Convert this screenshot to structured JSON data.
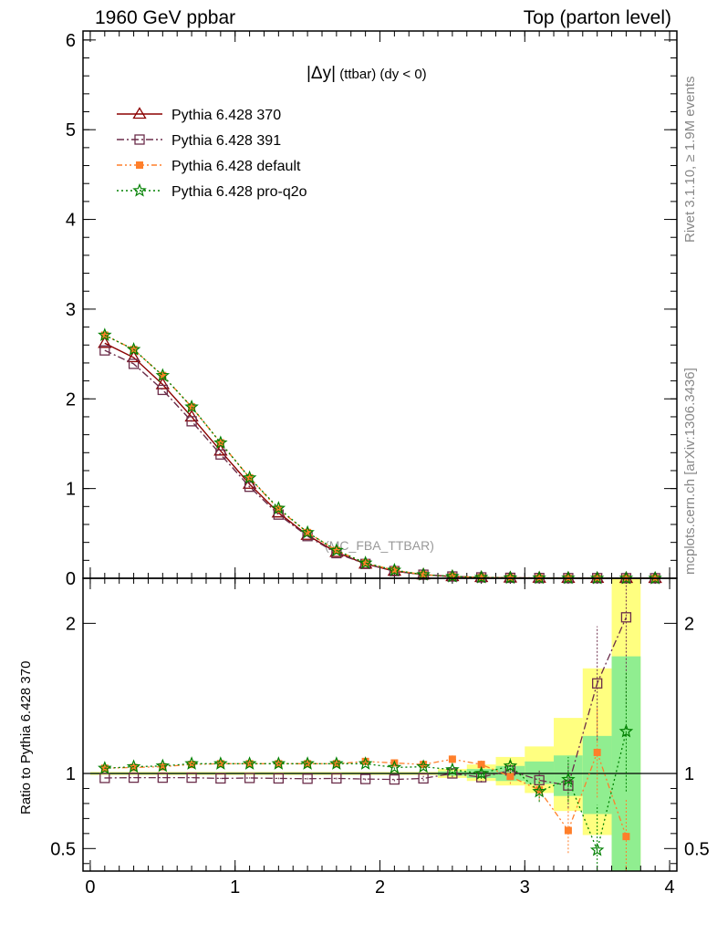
{
  "header": {
    "left": "1960 GeV ppbar",
    "right": "Top (parton level)"
  },
  "side": {
    "rivet": "Rivet 3.1.10, ≥ 1.9M events",
    "mcplots": "mcplots.cern.ch [arXiv:1306.3436]"
  },
  "plot": {
    "title_main": "|Δy|",
    "title_sub": " (ttbar) (dy < 0)",
    "watermark": "(MC_FBA_TTBAR)",
    "ratio_ylabel": "Ratio to Pythia 6.428 370"
  },
  "colors": {
    "band_inner": "#90ee90",
    "band_outer": "#ffff80"
  },
  "chart_data": [
    {
      "type": "line",
      "title": "|Δy| (ttbar) (dy < 0)",
      "xlim": [
        -0.05,
        4.05
      ],
      "ylim": [
        0,
        6.1
      ],
      "xticks": [
        0,
        1,
        2,
        3,
        4
      ],
      "yticks": [
        0,
        1,
        2,
        3,
        4,
        5,
        6
      ],
      "legend_position": "top-left",
      "x": [
        0.1,
        0.3,
        0.5,
        0.7,
        0.9,
        1.1,
        1.3,
        1.5,
        1.7,
        1.9,
        2.1,
        2.3,
        2.5,
        2.7,
        2.9,
        3.1,
        3.3,
        3.5,
        3.7,
        3.9
      ],
      "series": [
        {
          "name": "Pythia 6.428 370",
          "color": "#8b0000",
          "marker": "triangle",
          "dash": "solid",
          "values": [
            2.62,
            2.46,
            2.16,
            1.8,
            1.42,
            1.05,
            0.73,
            0.48,
            0.29,
            0.16,
            0.08,
            0.04,
            0.02,
            0.01,
            0.005,
            0.003,
            0.002,
            0.001,
            0.0005,
            0.0003
          ]
        },
        {
          "name": "Pythia 6.428 391",
          "color": "#6b2d4a",
          "marker": "square",
          "dash": "dashdot",
          "values": [
            2.54,
            2.39,
            2.1,
            1.75,
            1.38,
            1.02,
            0.71,
            0.47,
            0.28,
            0.16,
            0.08,
            0.04,
            0.02,
            0.01,
            0.005,
            0.003,
            0.002,
            0.002,
            0.001,
            0.0008
          ]
        },
        {
          "name": "Pythia 6.428 default",
          "color": "#ff7f2a",
          "marker": "filled-square",
          "dash": "dashdotdot",
          "values": [
            2.71,
            2.55,
            2.26,
            1.91,
            1.51,
            1.12,
            0.77,
            0.51,
            0.31,
            0.17,
            0.09,
            0.04,
            0.02,
            0.01,
            0.005,
            0.003,
            0.001,
            0.001,
            0.0003,
            0.0001
          ]
        },
        {
          "name": "Pythia 6.428 pro-q2o",
          "color": "#008000",
          "marker": "star",
          "dash": "dotted",
          "values": [
            2.71,
            2.55,
            2.26,
            1.91,
            1.51,
            1.12,
            0.78,
            0.51,
            0.31,
            0.17,
            0.09,
            0.04,
            0.02,
            0.01,
            0.005,
            0.003,
            0.002,
            0.0005,
            0.0006,
            0.0002
          ]
        }
      ]
    },
    {
      "type": "line",
      "ylabel": "Ratio to Pythia 6.428 370",
      "xlim": [
        -0.05,
        4.05
      ],
      "ylim": [
        0.35,
        2.3
      ],
      "xticks": [
        0,
        1,
        2,
        3,
        4
      ],
      "yticks": [
        0.5,
        1,
        2
      ],
      "x": [
        0.1,
        0.3,
        0.5,
        0.7,
        0.9,
        1.1,
        1.3,
        1.5,
        1.7,
        1.9,
        2.1,
        2.3,
        2.5,
        2.7,
        2.9,
        3.1,
        3.3,
        3.5,
        3.7
      ],
      "band": {
        "edges": [
          0.0,
          2.4,
          2.6,
          2.8,
          3.0,
          3.2,
          3.4,
          3.6,
          3.8
        ],
        "inner": [
          [
            0.995,
            1.005
          ],
          [
            0.985,
            1.015
          ],
          [
            0.97,
            1.03
          ],
          [
            0.95,
            1.05
          ],
          [
            0.93,
            1.08
          ],
          [
            0.85,
            1.12
          ],
          [
            0.73,
            1.25
          ],
          [
            0.35,
            1.78
          ]
        ],
        "outer": [
          [
            0.99,
            1.01
          ],
          [
            0.97,
            1.03
          ],
          [
            0.95,
            1.06
          ],
          [
            0.92,
            1.11
          ],
          [
            0.87,
            1.18
          ],
          [
            0.75,
            1.37
          ],
          [
            0.59,
            1.7
          ],
          [
            0.35,
            2.3
          ]
        ]
      },
      "series": [
        {
          "name": "Pythia 6.428 391",
          "color": "#6b2d4a",
          "marker": "square",
          "dash": "dashdot",
          "values": [
            0.97,
            0.972,
            0.972,
            0.972,
            0.967,
            0.97,
            0.967,
            0.965,
            0.967,
            0.963,
            0.96,
            0.967,
            1.0,
            0.975,
            1.02,
            0.955,
            0.92,
            1.6,
            2.04
          ],
          "errors": [
            0.003,
            0.003,
            0.003,
            0.003,
            0.004,
            0.004,
            0.005,
            0.006,
            0.007,
            0.009,
            0.012,
            0.017,
            0.025,
            0.035,
            0.05,
            0.07,
            0.15,
            0.38,
            0.6
          ]
        },
        {
          "name": "Pythia 6.428 default",
          "color": "#ff7f2a",
          "marker": "filled-square",
          "dash": "dashdotdot",
          "values": [
            1.035,
            1.04,
            1.045,
            1.06,
            1.065,
            1.065,
            1.065,
            1.065,
            1.065,
            1.08,
            1.07,
            1.06,
            1.095,
            1.06,
            0.98,
            0.89,
            0.62,
            1.14,
            0.58
          ],
          "errors": [
            0.003,
            0.003,
            0.003,
            0.003,
            0.004,
            0.004,
            0.005,
            0.006,
            0.007,
            0.009,
            0.012,
            0.017,
            0.025,
            0.035,
            0.05,
            0.07,
            0.15,
            0.3,
            0.25
          ]
        },
        {
          "name": "Pythia 6.428 pro-q2o",
          "color": "#008000",
          "marker": "star",
          "dash": "dotted",
          "values": [
            1.035,
            1.045,
            1.05,
            1.065,
            1.065,
            1.065,
            1.065,
            1.065,
            1.065,
            1.065,
            1.04,
            1.045,
            1.025,
            1.0,
            1.05,
            0.88,
            0.96,
            0.49,
            1.28
          ],
          "errors": [
            0.003,
            0.003,
            0.003,
            0.003,
            0.004,
            0.004,
            0.005,
            0.006,
            0.007,
            0.009,
            0.012,
            0.017,
            0.025,
            0.035,
            0.05,
            0.07,
            0.15,
            0.3,
            0.4
          ]
        }
      ]
    }
  ]
}
